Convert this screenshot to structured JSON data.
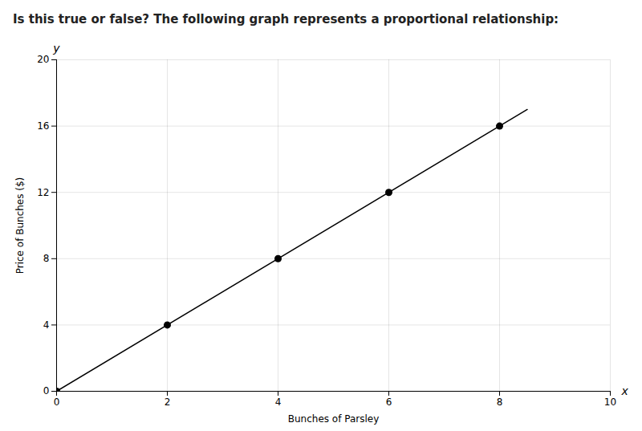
{
  "chart_data": {
    "type": "scatter",
    "title": "Is this true or false? The following graph represents a proportional relationship:",
    "xlabel": "Bunches of Parsley",
    "ylabel": "Price of Bunches ($)",
    "series": [
      {
        "type": "line",
        "x": [
          0,
          8.5
        ],
        "values": [
          0,
          17
        ],
        "color": "#000000"
      },
      {
        "type": "scatter",
        "x": [
          0,
          2,
          4,
          6,
          8
        ],
        "values": [
          0,
          4,
          8,
          12,
          16
        ],
        "color": "#000000"
      }
    ],
    "xlim": [
      0,
      10
    ],
    "ylim": [
      0,
      20
    ],
    "xticks": [
      0,
      2,
      4,
      6,
      8,
      10
    ],
    "yticks": [
      0,
      4,
      8,
      12,
      16,
      20
    ],
    "grid": true,
    "annotations": [
      {
        "text": "x"
      },
      {
        "text": "y"
      }
    ]
  }
}
